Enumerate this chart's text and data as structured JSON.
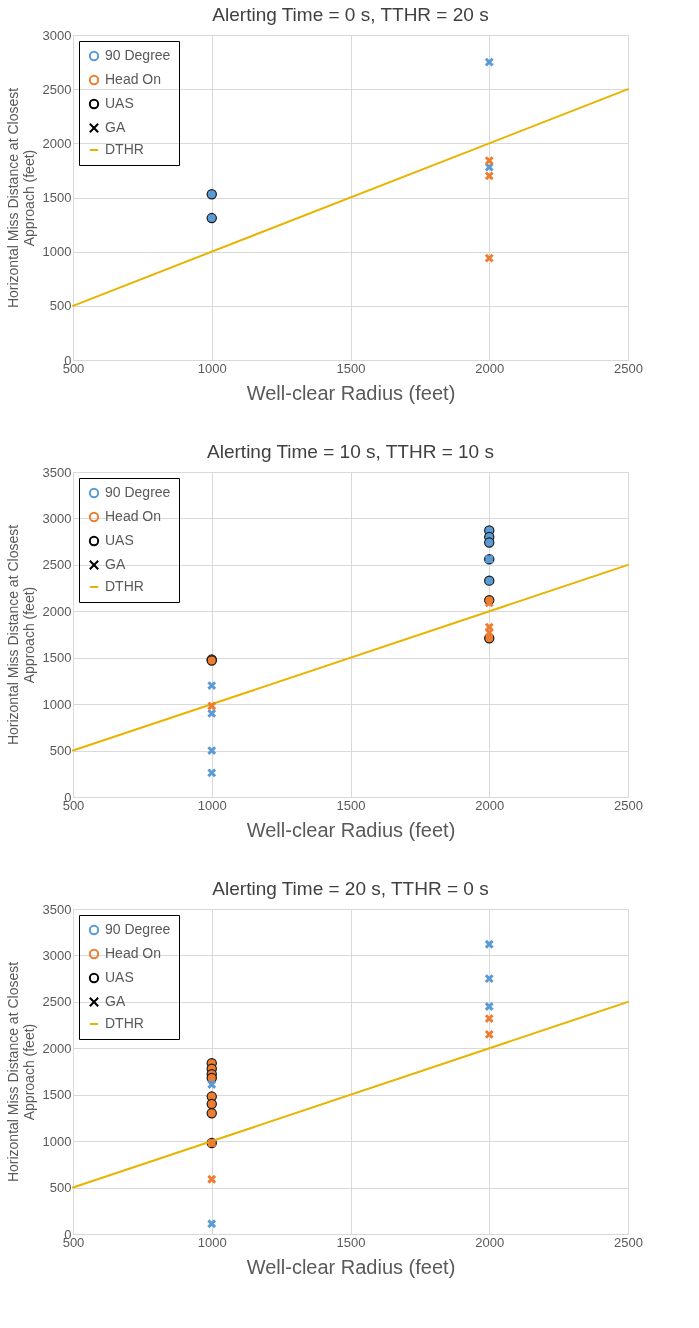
{
  "chart_data": [
    {
      "type": "scatter",
      "title": "Alerting Time = 0 s, TTHR = 20 s",
      "xlabel": "Well-clear Radius (feet)",
      "ylabel": "Horizontal Miss Distance at Closest\nApproach (feet)",
      "xlim": [
        500,
        2500
      ],
      "xticks": [
        500,
        1000,
        1500,
        2000,
        2500
      ],
      "ylim": [
        0,
        3000
      ],
      "yticks": [
        0,
        500,
        1000,
        1500,
        2000,
        2500,
        3000
      ],
      "grid": true,
      "legend": "top left",
      "series": [
        {
          "color": "#5b9bd5",
          "marker": "circle",
          "x": [
            1000,
            1000
          ],
          "values": [
            1530,
            1310
          ]
        },
        {
          "color": "#5b9bd5",
          "marker": "cross",
          "x": [
            2000,
            2000
          ],
          "values": [
            2750,
            1780
          ]
        },
        {
          "color": "#ed7d31",
          "marker": "cross",
          "x": [
            2000,
            2000,
            2000
          ],
          "values": [
            1840,
            1700,
            940
          ]
        },
        {
          "name": "90 Degree",
          "color": "#5b9bd5",
          "marker": "circle"
        },
        {
          "name": "Head On",
          "color": "#ed7d31",
          "marker": "circle"
        },
        {
          "name": "UAS",
          "color": "#000000",
          "marker": "circle"
        },
        {
          "name": "GA",
          "color": "#000000",
          "marker": "cross"
        },
        {
          "name": "DTHR",
          "type": "line",
          "color": "#e8b400",
          "marker": "none",
          "x": [
            500,
            2500
          ],
          "values": [
            500,
            2500
          ]
        }
      ]
    },
    {
      "type": "scatter",
      "title": "Alerting Time = 10 s, TTHR = 10 s",
      "xlabel": "Well-clear Radius (feet)",
      "ylabel": "Horizontal Miss Distance at Closest\nApproach (feet)",
      "xlim": [
        500,
        2500
      ],
      "xticks": [
        500,
        1000,
        1500,
        2000,
        2500
      ],
      "ylim": [
        0,
        3500
      ],
      "yticks": [
        0,
        500,
        1000,
        1500,
        2000,
        2500,
        3000,
        3500
      ],
      "grid": true,
      "legend": "top left",
      "series": [
        {
          "color": "#5b9bd5",
          "marker": "circle",
          "x": [
            2000,
            2000,
            2000,
            2000,
            2000
          ],
          "values": [
            2870,
            2800,
            2740,
            2560,
            2330
          ]
        },
        {
          "color": "#5b9bd5",
          "marker": "cross",
          "x": [
            1000,
            1000,
            1000,
            1000,
            2000
          ],
          "values": [
            1200,
            900,
            500,
            260,
            2560
          ]
        },
        {
          "color": "#ed7d31",
          "marker": "circle",
          "x": [
            1000,
            1000,
            2000,
            2000
          ],
          "values": [
            1480,
            1470,
            2120,
            1710
          ]
        },
        {
          "color": "#ed7d31",
          "marker": "cross",
          "x": [
            1000,
            2000,
            2000,
            2000
          ],
          "values": [
            980,
            2090,
            1830,
            1770
          ]
        },
        {
          "name": "90 Degree",
          "color": "#5b9bd5",
          "marker": "circle"
        },
        {
          "name": "Head On",
          "color": "#ed7d31",
          "marker": "circle"
        },
        {
          "name": "UAS",
          "color": "#000000",
          "marker": "circle"
        },
        {
          "name": "GA",
          "color": "#000000",
          "marker": "cross"
        },
        {
          "name": "DTHR",
          "type": "line",
          "color": "#e8b400",
          "marker": "none",
          "x": [
            500,
            2500
          ],
          "values": [
            500,
            2500
          ]
        }
      ]
    },
    {
      "type": "scatter",
      "title": "Alerting Time = 20 s, TTHR = 0 s",
      "xlabel": "Well-clear Radius (feet)",
      "ylabel": "Horizontal Miss Distance at Closest\nApproach (feet)",
      "xlim": [
        500,
        2500
      ],
      "xticks": [
        500,
        1000,
        1500,
        2000,
        2500
      ],
      "ylim": [
        0,
        3500
      ],
      "yticks": [
        0,
        500,
        1000,
        1500,
        2000,
        2500,
        3000,
        3500
      ],
      "grid": true,
      "legend": "top left",
      "series": [
        {
          "color": "#5b9bd5",
          "marker": "cross",
          "x": [
            1000,
            1000,
            2000,
            2000,
            2000
          ],
          "values": [
            1610,
            110,
            3120,
            2750,
            2450
          ]
        },
        {
          "color": "#ed7d31",
          "marker": "circle",
          "x": [
            1000,
            1000,
            1000,
            1000,
            1000,
            1000,
            1000,
            1000
          ],
          "values": [
            1840,
            1780,
            1720,
            1680,
            1480,
            1400,
            1300,
            980
          ]
        },
        {
          "color": "#ed7d31",
          "marker": "cross",
          "x": [
            1000,
            1000,
            2000,
            2000
          ],
          "values": [
            980,
            590,
            2320,
            2150
          ]
        },
        {
          "name": "90 Degree",
          "color": "#5b9bd5",
          "marker": "circle"
        },
        {
          "name": "Head On",
          "color": "#ed7d31",
          "marker": "circle"
        },
        {
          "name": "UAS",
          "color": "#000000",
          "marker": "circle"
        },
        {
          "name": "GA",
          "color": "#000000",
          "marker": "cross"
        },
        {
          "name": "DTHR",
          "type": "line",
          "color": "#e8b400",
          "marker": "none",
          "x": [
            500,
            2500
          ],
          "values": [
            500,
            2500
          ]
        }
      ]
    }
  ]
}
